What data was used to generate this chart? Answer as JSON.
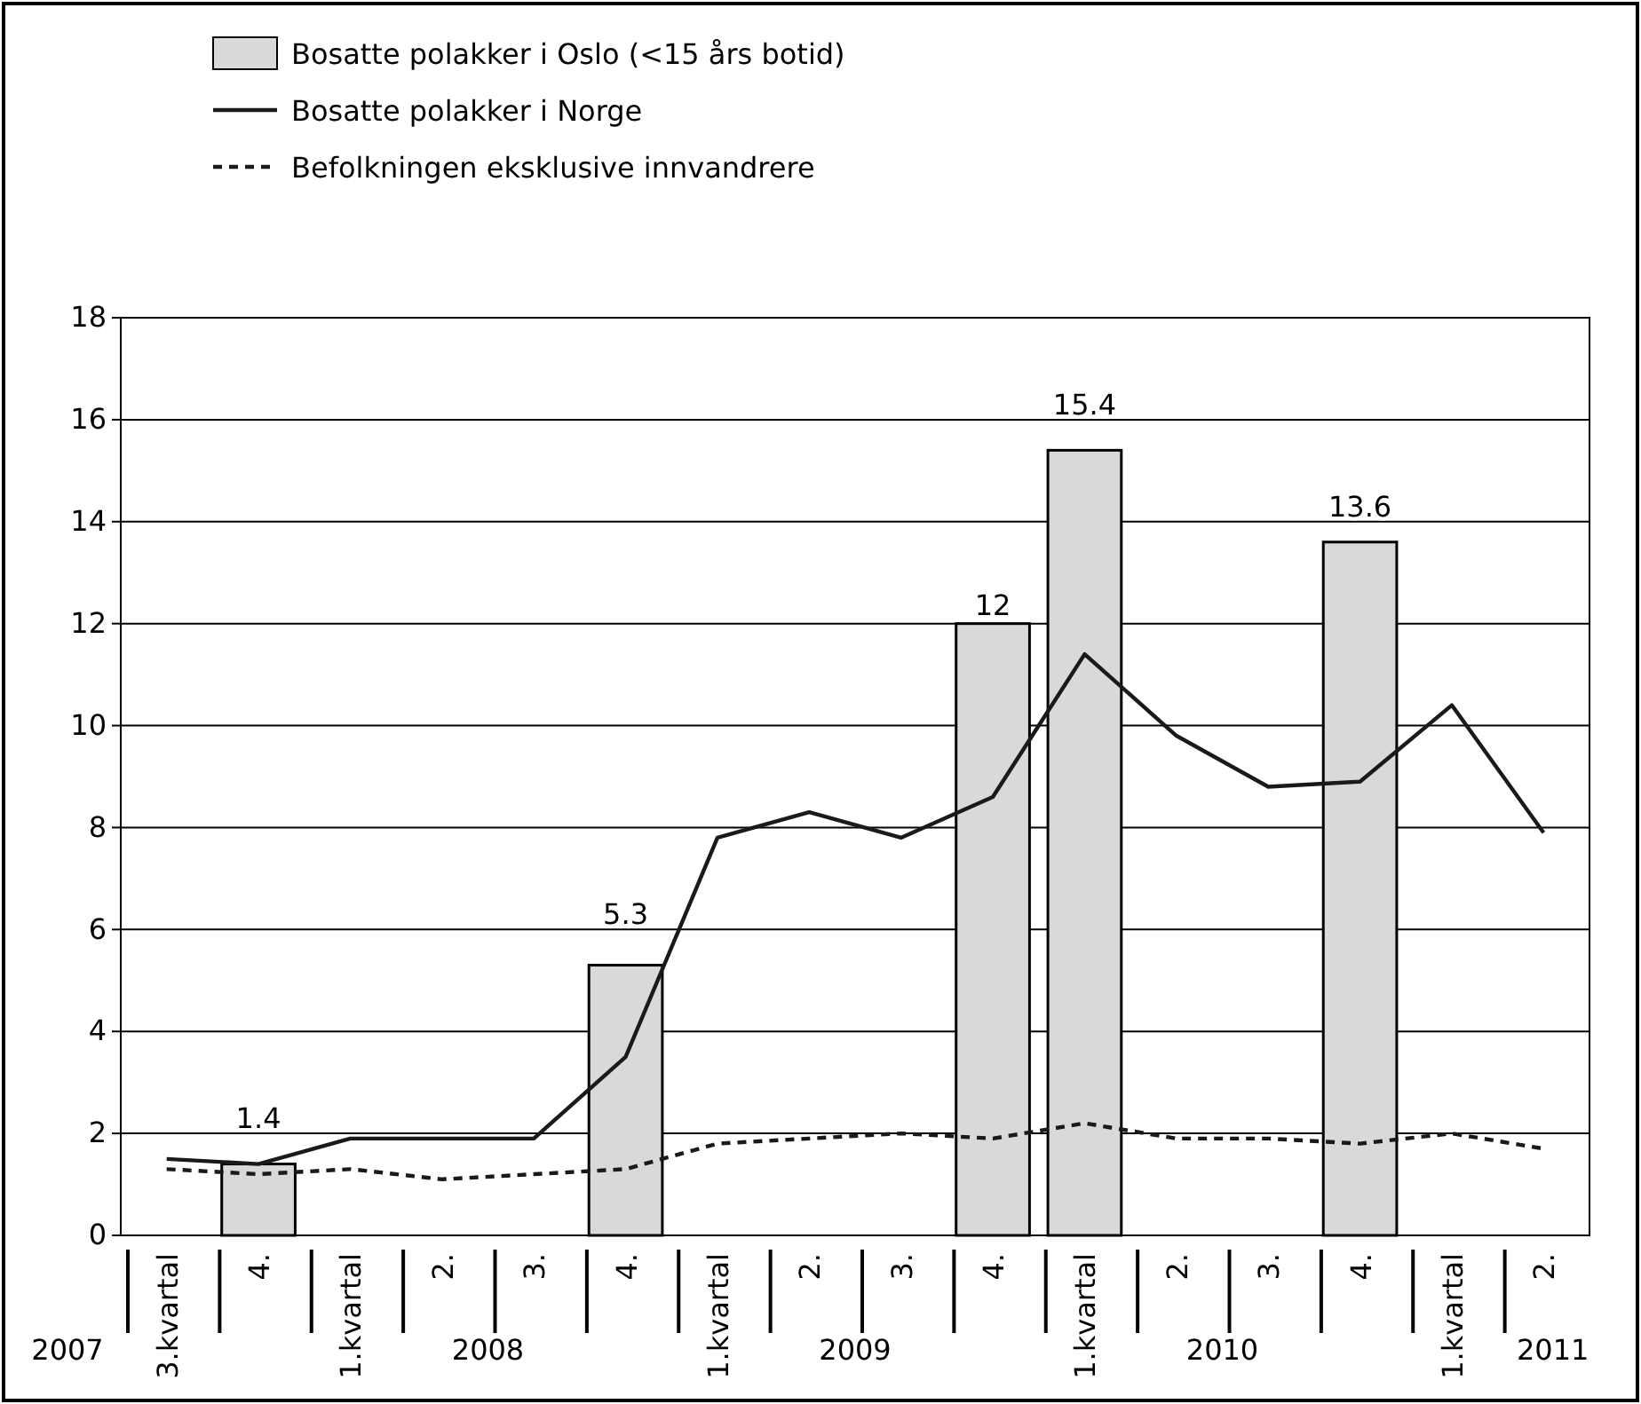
{
  "chart_data": {
    "type": "bar",
    "categories": [
      "3.kvartal",
      "4.",
      "1.kvartal",
      "2.",
      "3.",
      "4.",
      "1.kvartal",
      "2.",
      "3.",
      "4.",
      "1.kvartal",
      "2.",
      "3.",
      "4.",
      "1.kvartal",
      "2."
    ],
    "series": [
      {
        "name": "Bosatte polakker i Oslo (<15 års botid)",
        "color": "#d9d9d9",
        "values": [
          null,
          1.4,
          null,
          null,
          null,
          5.3,
          null,
          null,
          null,
          12,
          15.4,
          null,
          null,
          13.6,
          null,
          null
        ],
        "value_labels": [
          null,
          "1.4",
          null,
          null,
          null,
          "5.3",
          null,
          null,
          null,
          "12",
          "15.4",
          null,
          null,
          "13.6",
          null,
          null
        ]
      },
      {
        "name": "Bosatte polakker i Norge",
        "type": "line",
        "color": "#1a1a1a",
        "line_style": "solid",
        "values": [
          1.5,
          1.4,
          1.9,
          1.9,
          1.9,
          3.5,
          7.8,
          8.3,
          7.8,
          8.6,
          11.4,
          9.8,
          8.8,
          8.9,
          10.4,
          7.9
        ]
      },
      {
        "name": "Befolkningen eksklusive innvandrere",
        "type": "line",
        "color": "#1a1a1a",
        "line_style": "dashed",
        "values": [
          1.3,
          1.2,
          1.3,
          1.1,
          1.2,
          1.3,
          1.8,
          1.9,
          2.0,
          1.9,
          2.2,
          1.9,
          1.9,
          1.8,
          2.0,
          1.7
        ]
      }
    ],
    "annotations": [
      "2007",
      "2008",
      "2009",
      "2010",
      "2011"
    ],
    "ylim": [
      0,
      18
    ],
    "yticks": [
      0,
      2,
      4,
      6,
      8,
      10,
      12,
      14,
      16,
      18
    ],
    "grid": "y",
    "legend": "top left"
  }
}
